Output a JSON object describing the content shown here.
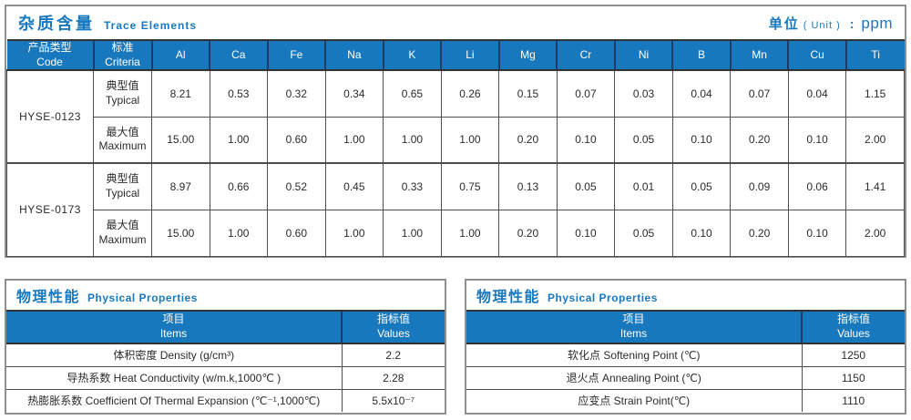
{
  "colors": {
    "accent": "#1878be"
  },
  "trace_table": {
    "title_zh": "杂质含量",
    "title_en": "Trace Elements",
    "unit_zh": "单位",
    "unit_en": "( Unit )",
    "unit_colon": ":",
    "unit_value": "ppm",
    "col_code_zh": "产品类型",
    "col_code_en": "Code",
    "col_criteria_zh": "标准",
    "col_criteria_en": "Criteria",
    "elements": [
      "Al",
      "Ca",
      "Fe",
      "Na",
      "K",
      "Li",
      "Mg",
      "Cr",
      "Ni",
      "B",
      "Mn",
      "Cu",
      "Ti"
    ],
    "products": [
      {
        "code": "HYSE-0123",
        "rows": [
          {
            "label_zh": "典型值",
            "label_en": "Typical",
            "values": [
              "8.21",
              "0.53",
              "0.32",
              "0.34",
              "0.65",
              "0.26",
              "0.15",
              "0.07",
              "0.03",
              "0.04",
              "0.07",
              "0.04",
              "1.15"
            ]
          },
          {
            "label_zh": "最大值",
            "label_en": "Maximum",
            "values": [
              "15.00",
              "1.00",
              "0.60",
              "1.00",
              "1.00",
              "1.00",
              "0.20",
              "0.10",
              "0.05",
              "0.10",
              "0.20",
              "0.10",
              "2.00"
            ]
          }
        ]
      },
      {
        "code": "HYSE-0173",
        "rows": [
          {
            "label_zh": "典型值",
            "label_en": "Typical",
            "values": [
              "8.97",
              "0.66",
              "0.52",
              "0.45",
              "0.33",
              "0.75",
              "0.13",
              "0.05",
              "0.01",
              "0.05",
              "0.09",
              "0.06",
              "1.41"
            ]
          },
          {
            "label_zh": "最大值",
            "label_en": "Maximum",
            "values": [
              "15.00",
              "1.00",
              "0.60",
              "1.00",
              "1.00",
              "1.00",
              "0.20",
              "0.10",
              "0.05",
              "0.10",
              "0.20",
              "0.10",
              "2.00"
            ]
          }
        ]
      }
    ]
  },
  "physical_left": {
    "title_zh": "物理性能",
    "title_en": "Physical Properties",
    "col_items_zh": "项目",
    "col_items_en": "Items",
    "col_values_zh": "指标值",
    "col_values_en": "Values",
    "rows": [
      {
        "item": "体积密度 Density (g/cm³)",
        "value": "2.2"
      },
      {
        "item": "导热系数 Heat Conductivity (w/m.k,1000℃ )",
        "value": "2.28"
      },
      {
        "item": "热膨胀系数 Coefficient Of Thermal Expansion (℃⁻¹,1000℃)",
        "value": "5.5x10⁻⁷"
      }
    ]
  },
  "physical_right": {
    "title_zh": "物理性能",
    "title_en": "Physical Properties",
    "col_items_zh": "项目",
    "col_items_en": "Items",
    "col_values_zh": "指标值",
    "col_values_en": "Values",
    "rows": [
      {
        "item": "软化点 Softening Point (℃)",
        "value": "1250"
      },
      {
        "item": "退火点 Annealing Point (℃)",
        "value": "1150"
      },
      {
        "item": "应变点 Strain Point(℃)",
        "value": "1110"
      }
    ]
  }
}
